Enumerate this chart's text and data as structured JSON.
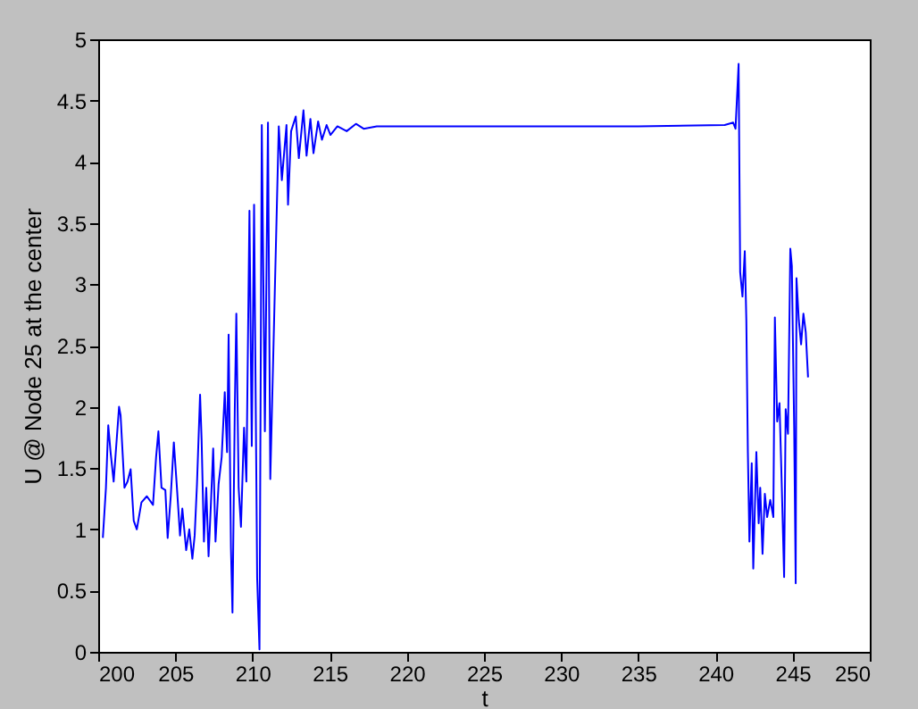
{
  "chart_data": {
    "type": "line",
    "xlabel": "t",
    "ylabel": "U @ Node 25 at the center",
    "xlim": [
      200,
      250
    ],
    "ylim": [
      0,
      5
    ],
    "xticks": [
      200,
      205,
      210,
      215,
      220,
      225,
      230,
      235,
      240,
      245,
      250
    ],
    "yticks": [
      0,
      0.5,
      1,
      1.5,
      2,
      2.5,
      3,
      3.5,
      4,
      4.5,
      5
    ],
    "grid": false,
    "line_style": "solid",
    "marker": "none",
    "x": [
      200.3,
      200.5,
      200.65,
      200.8,
      201.0,
      201.35,
      201.45,
      201.7,
      201.9,
      202.1,
      202.3,
      202.5,
      202.8,
      203.15,
      203.55,
      203.75,
      203.9,
      204.1,
      204.35,
      204.5,
      204.7,
      204.9,
      205.1,
      205.3,
      205.45,
      205.7,
      205.9,
      206.1,
      206.25,
      206.4,
      206.6,
      206.7,
      206.85,
      207.0,
      207.15,
      207.3,
      207.45,
      207.6,
      207.8,
      208.0,
      208.2,
      208.35,
      208.45,
      208.6,
      208.7,
      208.85,
      208.95,
      209.1,
      209.25,
      209.45,
      209.6,
      209.8,
      209.95,
      210.1,
      210.3,
      210.45,
      210.6,
      210.8,
      211.0,
      211.15,
      211.55,
      211.7,
      211.9,
      212.2,
      212.3,
      212.5,
      212.8,
      213.0,
      213.3,
      213.5,
      213.75,
      213.95,
      214.25,
      214.5,
      214.8,
      215.05,
      215.5,
      216.1,
      216.7,
      217.2,
      218.05,
      225,
      235,
      240.6,
      241.15,
      241.3,
      241.5,
      241.6,
      241.75,
      241.9,
      242.0,
      242.1,
      242.2,
      242.35,
      242.45,
      242.65,
      242.8,
      242.9,
      243.05,
      243.2,
      243.35,
      243.55,
      243.75,
      243.85,
      244.0,
      244.15,
      244.3,
      244.45,
      244.55,
      244.7,
      244.85,
      244.95,
      245.1,
      245.2,
      245.25,
      245.4,
      245.55,
      245.7,
      245.85,
      246.0
    ],
    "series": [
      {
        "color": "#0000ff",
        "values": [
          0.93,
          1.34,
          1.85,
          1.63,
          1.39,
          2.0,
          1.93,
          1.34,
          1.39,
          1.49,
          1.07,
          1.0,
          1.22,
          1.27,
          1.2,
          1.59,
          1.8,
          1.34,
          1.32,
          0.93,
          1.27,
          1.71,
          1.34,
          0.95,
          1.17,
          0.83,
          1.0,
          0.76,
          0.95,
          1.37,
          2.1,
          1.73,
          0.9,
          1.34,
          0.78,
          1.2,
          1.66,
          0.9,
          1.37,
          1.59,
          2.12,
          1.63,
          2.59,
          0.85,
          0.32,
          1.98,
          2.76,
          1.34,
          1.02,
          1.83,
          1.39,
          3.6,
          1.68,
          3.65,
          0.6,
          0.02,
          4.3,
          1.8,
          4.32,
          1.41,
          3.5,
          4.29,
          3.85,
          4.3,
          3.65,
          4.25,
          4.37,
          4.03,
          4.42,
          4.05,
          4.35,
          4.07,
          4.33,
          4.18,
          4.3,
          4.22,
          4.29,
          4.25,
          4.31,
          4.27,
          4.29,
          4.29,
          4.29,
          4.3,
          4.32,
          4.27,
          4.8,
          3.1,
          2.9,
          3.27,
          2.71,
          1.63,
          0.9,
          1.54,
          0.68,
          1.63,
          1.05,
          1.34,
          0.8,
          1.29,
          1.1,
          1.24,
          1.1,
          2.73,
          1.88,
          2.03,
          1.34,
          0.61,
          1.98,
          1.78,
          3.29,
          3.15,
          1.83,
          0.56,
          3.05,
          2.71,
          2.51,
          2.76,
          2.61,
          2.24
        ]
      }
    ]
  }
}
